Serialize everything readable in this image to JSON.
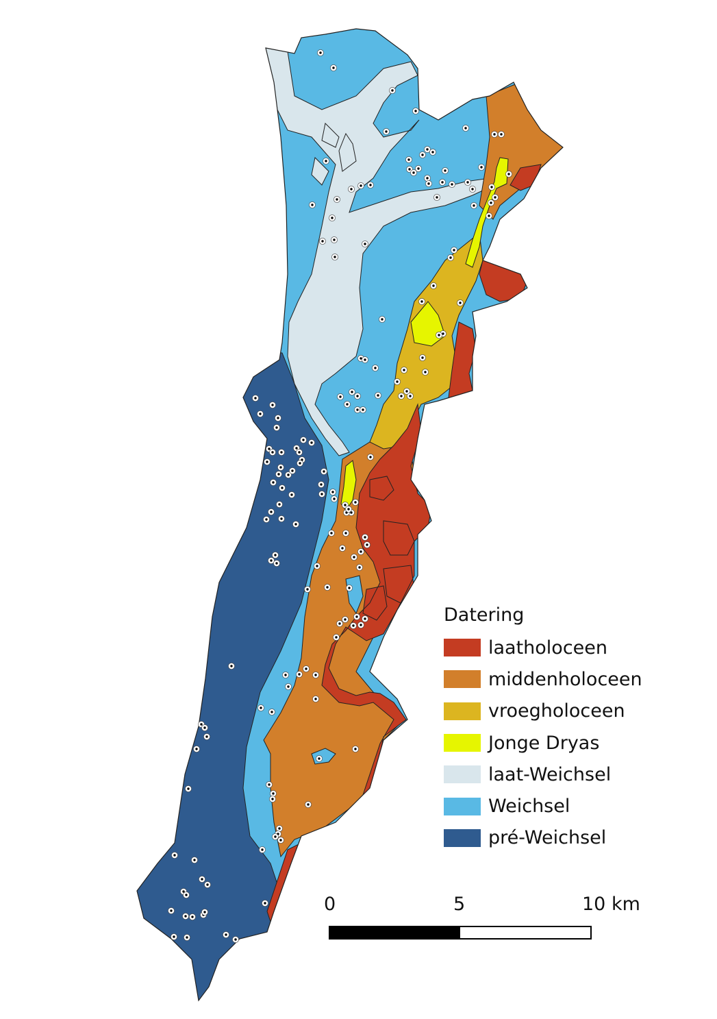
{
  "colors": {
    "laatholoceen": "#c43c22",
    "middenholoceen": "#d27f2b",
    "vroegholoceen": "#dcb520",
    "jonge_dryas": "#e6f500",
    "laat_weichsel": "#d9e6ec",
    "weichsel": "#59b9e4",
    "pre_weichsel": "#2f5b8f",
    "boundary": "#222222",
    "site_fill": "#ffffff",
    "site_center": "#000000"
  },
  "legend": {
    "title": "Datering",
    "items": [
      {
        "label": "laatholoceen",
        "color": "#c43c22"
      },
      {
        "label": "middenholoceen",
        "color": "#d27f2b"
      },
      {
        "label": "vroegholoceen",
        "color": "#dcb520"
      },
      {
        "label": "Jonge Dryas",
        "color": "#e6f500"
      },
      {
        "label": "laat-Weichsel",
        "color": "#d9e6ec"
      },
      {
        "label": "Weichsel",
        "color": "#59b9e4"
      },
      {
        "label": "pré-Weichsel",
        "color": "#2f5b8f"
      }
    ]
  },
  "scalebar": {
    "labels": [
      "0",
      "5",
      "10 km"
    ]
  }
}
